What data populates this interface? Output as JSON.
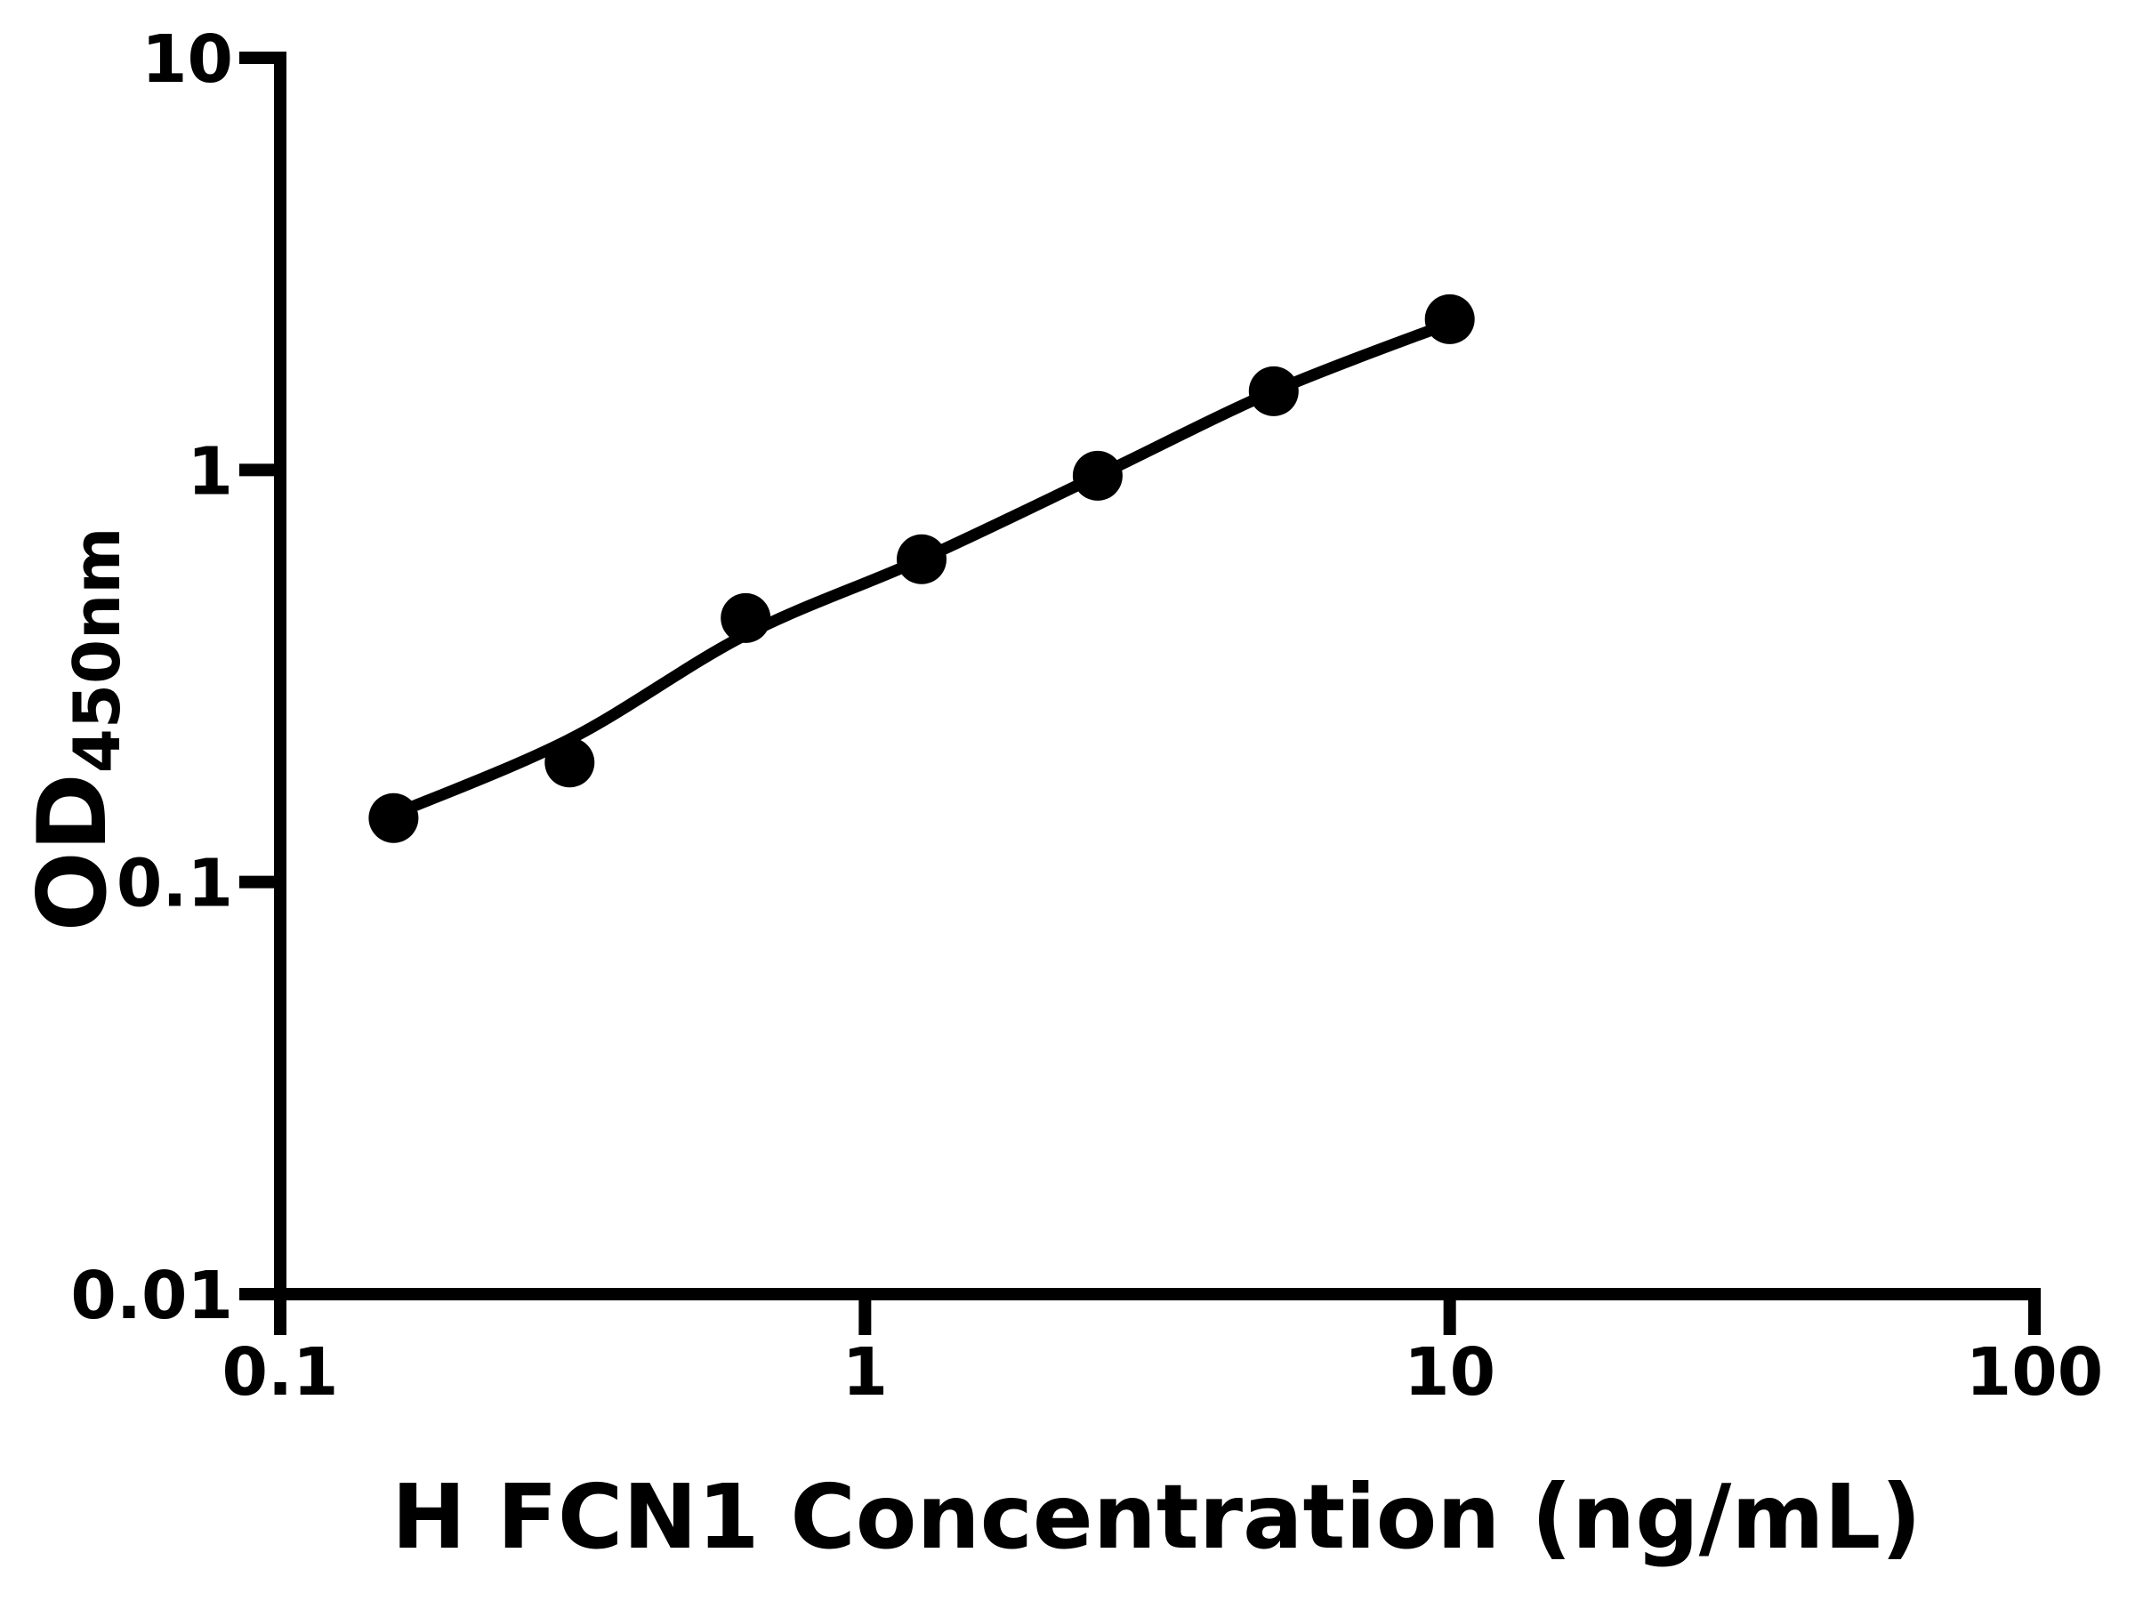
{
  "figure": {
    "background_color": "#ffffff",
    "foreground_color": "#000000"
  },
  "chart_data": {
    "type": "scatter",
    "title": "",
    "xlabel": "H FCN1 Concentration (ng/mL)",
    "ylabel_main": "OD",
    "ylabel_sub": "450nm",
    "x_scale": "log",
    "y_scale": "log",
    "xlim": [
      0.1,
      100
    ],
    "ylim": [
      0.01,
      10
    ],
    "grid": false,
    "legend": null,
    "x_ticks": [
      {
        "value": 0.1,
        "label": "0.1"
      },
      {
        "value": 1,
        "label": "1"
      },
      {
        "value": 10,
        "label": "10"
      },
      {
        "value": 100,
        "label": "100"
      }
    ],
    "y_ticks": [
      {
        "value": 10,
        "label": "10"
      },
      {
        "value": 1,
        "label": "1"
      },
      {
        "value": 0.1,
        "label": "0.1"
      },
      {
        "value": 0.01,
        "label": "0.01"
      }
    ],
    "series": [
      {
        "name": "standard-curve-points",
        "marker": "filled-circle",
        "color": "#000000",
        "points": [
          {
            "x": 0.15625,
            "y": 0.143
          },
          {
            "x": 0.3125,
            "y": 0.195
          },
          {
            "x": 0.625,
            "y": 0.437
          },
          {
            "x": 1.25,
            "y": 0.607
          },
          {
            "x": 2.5,
            "y": 0.968
          },
          {
            "x": 5,
            "y": 1.552
          },
          {
            "x": 10,
            "y": 2.321
          }
        ]
      }
    ],
    "fit_line": {
      "name": "four-parameter-logistic-fit",
      "color": "#000000",
      "points": [
        {
          "x": 0.15625,
          "y": 0.146
        },
        {
          "x": 0.3125,
          "y": 0.222
        },
        {
          "x": 0.625,
          "y": 0.398
        },
        {
          "x": 1.25,
          "y": 0.607
        },
        {
          "x": 2.5,
          "y": 0.968
        },
        {
          "x": 5,
          "y": 1.552
        },
        {
          "x": 10,
          "y": 2.27
        }
      ]
    }
  }
}
